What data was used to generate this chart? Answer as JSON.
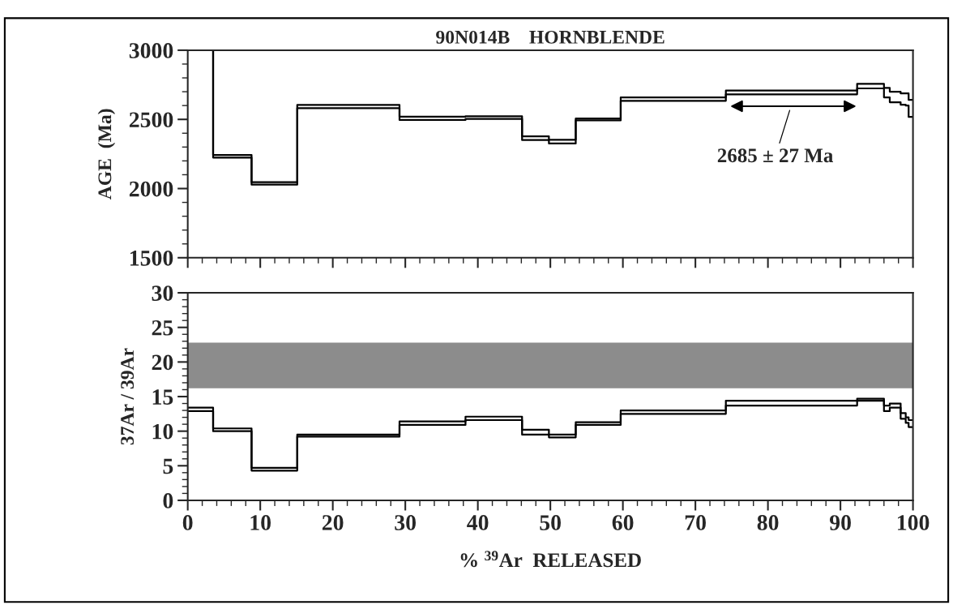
{
  "chart_data": [
    {
      "type": "step",
      "title": "90N014B    HORNBLENDE",
      "ylabel": "AGE  (Ma)",
      "xlim": [
        0,
        100
      ],
      "xticks": [
        0,
        10,
        20,
        30,
        40,
        50,
        60,
        70,
        80,
        90,
        100
      ],
      "ylim": [
        1500,
        3000
      ],
      "yticks": [
        1500,
        2000,
        2500,
        3000
      ],
      "tick_labels": "y",
      "grid": false,
      "legend": false,
      "series": [
        {
          "color": "#000000",
          "x": [
            0,
            3.5,
            8.8,
            15.1,
            29.2,
            38.3,
            46.1,
            49.8,
            53.5,
            59.7,
            74.2,
            92.3,
            96.0,
            96.8,
            98.3,
            99.0,
            99.4,
            100
          ],
          "values": [
            3000,
            2243,
            2046,
            2604,
            2520,
            2522,
            2378,
            2353,
            2506,
            2659,
            2708,
            2757,
            2728,
            2700,
            2688,
            2688,
            2641,
            2641
          ]
        },
        {
          "color": "#000000",
          "x": [
            0,
            3.5,
            8.8,
            15.1,
            29.2,
            38.3,
            46.1,
            49.8,
            53.5,
            59.7,
            74.2,
            92.3,
            96.0,
            96.8,
            98.3,
            99.0,
            99.4,
            100
          ],
          "values": [
            3000,
            2224,
            2028,
            2581,
            2496,
            2504,
            2351,
            2326,
            2493,
            2634,
            2681,
            2724,
            2659,
            2624,
            2606,
            2600,
            2518,
            2518
          ]
        }
      ],
      "annotations": [
        "2685 ± 27 Ma"
      ]
    },
    {
      "type": "step",
      "xlabel": "% $^{39}$Ar  RELEASED",
      "ylabel": "37Ar / 39Ar",
      "xlim": [
        0,
        100
      ],
      "xticks": [
        0,
        10,
        20,
        30,
        40,
        50,
        60,
        70,
        80,
        90,
        100
      ],
      "ylim": [
        0,
        30
      ],
      "yticks": [
        0,
        5,
        10,
        15,
        20,
        25,
        30
      ],
      "grid": false,
      "legend": false,
      "bands": [
        {
          "axis": "y",
          "from": 16.2,
          "to": 22.8,
          "color": "#8c8c8c"
        }
      ],
      "series": [
        {
          "color": "#000000",
          "x": [
            0,
            3.5,
            8.8,
            15.1,
            29.2,
            38.3,
            46.1,
            49.8,
            53.5,
            59.7,
            74.2,
            92.3,
            96.0,
            96.8,
            98.3,
            99.0,
            99.4,
            100
          ],
          "values": [
            13.4,
            10.4,
            4.7,
            9.5,
            11.4,
            12.1,
            10.2,
            9.5,
            11.3,
            13.0,
            14.4,
            14.7,
            13.7,
            14.0,
            12.6,
            12.0,
            11.6,
            11.6
          ]
        },
        {
          "color": "#000000",
          "x": [
            0,
            3.5,
            8.8,
            15.1,
            29.2,
            38.3,
            46.1,
            49.8,
            53.5,
            59.7,
            74.2,
            92.3,
            96.0,
            96.8,
            98.3,
            99.0,
            99.4,
            100
          ],
          "values": [
            12.9,
            10.0,
            4.3,
            9.2,
            10.9,
            11.6,
            9.5,
            9.1,
            10.9,
            12.5,
            13.7,
            14.4,
            12.9,
            13.4,
            11.8,
            11.2,
            10.6,
            10.6
          ]
        }
      ]
    }
  ]
}
